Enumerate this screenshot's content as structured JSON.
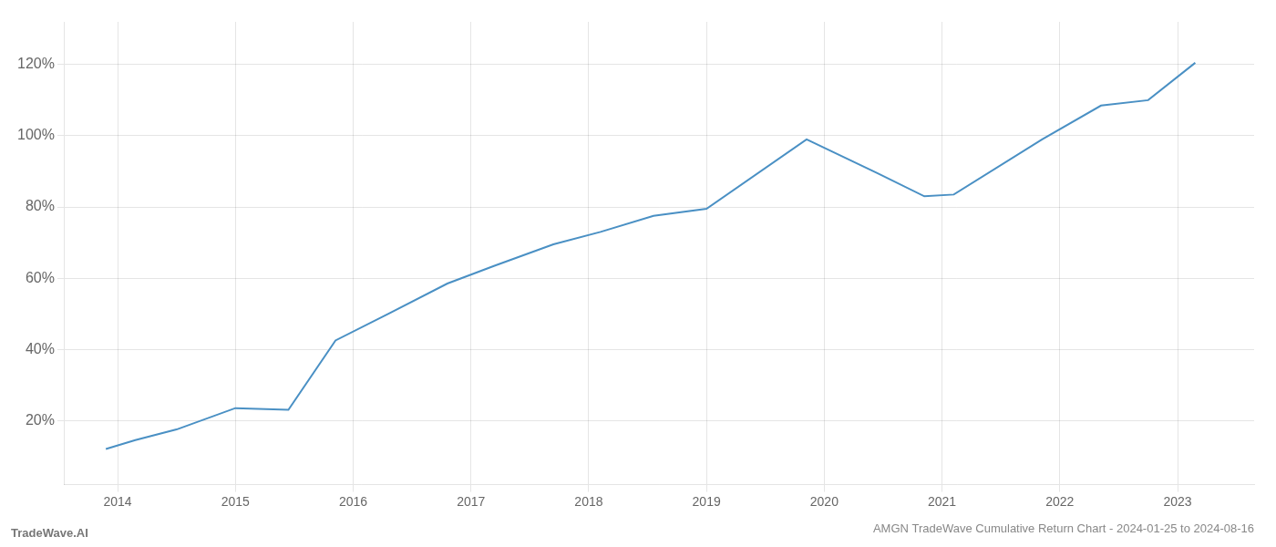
{
  "chart_data": {
    "type": "line",
    "title": "AMGN TradeWave Cumulative Return Chart - 2024-01-25 to 2024-08-16",
    "annotations": [
      "TradeWave.AI"
    ],
    "x": [
      2013.9,
      2014.15,
      2014.5,
      2015.0,
      2015.45,
      2015.85,
      2016.3,
      2016.8,
      2017.2,
      2017.7,
      2018.1,
      2018.55,
      2019.0,
      2019.85,
      2020.45,
      2020.85,
      2021.1,
      2021.85,
      2022.35,
      2022.75,
      2023.15
    ],
    "values": [
      0.12,
      0.145,
      0.175,
      0.235,
      0.23,
      0.425,
      0.5,
      0.585,
      0.635,
      0.695,
      0.73,
      0.775,
      0.795,
      0.99,
      0.895,
      0.83,
      0.835,
      0.99,
      1.085,
      1.1,
      1.205
    ],
    "color": "#4a90c4",
    "xlim": [
      2013.55,
      2023.65
    ],
    "xticks": [
      2014,
      2015,
      2016,
      2017,
      2018,
      2019,
      2020,
      2021,
      2022,
      2023
    ],
    "ylim": [
      0.02,
      1.32
    ],
    "yticks": [
      {
        "value": 0.2,
        "label": "20%"
      },
      {
        "value": 0.4,
        "label": "40%"
      },
      {
        "value": 0.6,
        "label": "60%"
      },
      {
        "value": 0.8,
        "label": "80%"
      },
      {
        "value": 1.0,
        "label": "100%"
      },
      {
        "value": 1.2,
        "label": "120%"
      }
    ],
    "grid": true
  }
}
